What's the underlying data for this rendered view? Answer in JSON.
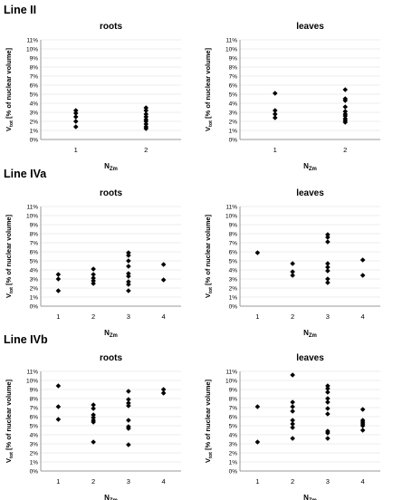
{
  "sections": [
    {
      "title": "Line II"
    },
    {
      "title": "Line IVa"
    },
    {
      "title": "Line IVb"
    }
  ],
  "ylabel_main": "V",
  "ylabel_sub": "tot",
  "ylabel_rest": " [% of nuclear volume]",
  "xlabel_main": "N",
  "xlabel_sub": "Zm",
  "chart_data": [
    {
      "type": "scatter",
      "section": "Line II",
      "title": "roots",
      "xlabel": "NZm",
      "ylabel": "Vtot [% of nuclear volume]",
      "ylim": [
        0,
        11
      ],
      "yticks": [
        "0%",
        "1%",
        "2%",
        "3%",
        "4%",
        "5%",
        "6%",
        "7%",
        "8%",
        "9%",
        "10%",
        "11%"
      ],
      "x_categories": [
        "1",
        "2"
      ],
      "points": [
        {
          "x": 1,
          "y": 3.2
        },
        {
          "x": 1,
          "y": 2.9
        },
        {
          "x": 1,
          "y": 2.5
        },
        {
          "x": 1,
          "y": 2.0
        },
        {
          "x": 1,
          "y": 1.4
        },
        {
          "x": 2,
          "y": 3.5
        },
        {
          "x": 2,
          "y": 3.2
        },
        {
          "x": 2,
          "y": 2.8
        },
        {
          "x": 2,
          "y": 2.5
        },
        {
          "x": 2,
          "y": 2.2
        },
        {
          "x": 2,
          "y": 2.0
        },
        {
          "x": 2,
          "y": 1.7
        },
        {
          "x": 2,
          "y": 1.4
        },
        {
          "x": 2,
          "y": 1.2
        }
      ]
    },
    {
      "type": "scatter",
      "section": "Line II",
      "title": "leaves",
      "xlabel": "NZm",
      "ylabel": "Vtot [% of nuclear volume]",
      "ylim": [
        0,
        11
      ],
      "yticks": [
        "0%",
        "1%",
        "2%",
        "3%",
        "4%",
        "5%",
        "6%",
        "7%",
        "8%",
        "9%",
        "10%",
        "11%"
      ],
      "x_categories": [
        "1",
        "2"
      ],
      "points": [
        {
          "x": 1,
          "y": 5.1
        },
        {
          "x": 1,
          "y": 3.2
        },
        {
          "x": 1,
          "y": 2.8
        },
        {
          "x": 1,
          "y": 2.4
        },
        {
          "x": 2,
          "y": 5.5
        },
        {
          "x": 2,
          "y": 4.5
        },
        {
          "x": 2,
          "y": 4.3
        },
        {
          "x": 2,
          "y": 3.6
        },
        {
          "x": 2,
          "y": 3.1
        },
        {
          "x": 2,
          "y": 2.8
        },
        {
          "x": 2,
          "y": 2.6
        },
        {
          "x": 2,
          "y": 2.3
        },
        {
          "x": 2,
          "y": 2.1
        },
        {
          "x": 2,
          "y": 1.9
        }
      ]
    },
    {
      "type": "scatter",
      "section": "Line IVa",
      "title": "roots",
      "xlabel": "NZm",
      "ylabel": "Vtot [% of nuclear volume]",
      "ylim": [
        0,
        11
      ],
      "yticks": [
        "0%",
        "1%",
        "2%",
        "3%",
        "4%",
        "5%",
        "6%",
        "7%",
        "8%",
        "9%",
        "10%",
        "11%"
      ],
      "x_categories": [
        "1",
        "2",
        "3",
        "4"
      ],
      "points": [
        {
          "x": 1,
          "y": 3.5
        },
        {
          "x": 1,
          "y": 3.0
        },
        {
          "x": 1,
          "y": 1.7
        },
        {
          "x": 2,
          "y": 4.1
        },
        {
          "x": 2,
          "y": 3.5
        },
        {
          "x": 2,
          "y": 3.1
        },
        {
          "x": 2,
          "y": 2.8
        },
        {
          "x": 2,
          "y": 2.5
        },
        {
          "x": 3,
          "y": 5.9
        },
        {
          "x": 3,
          "y": 5.6
        },
        {
          "x": 3,
          "y": 5.0
        },
        {
          "x": 3,
          "y": 4.4
        },
        {
          "x": 3,
          "y": 3.6
        },
        {
          "x": 3,
          "y": 3.3
        },
        {
          "x": 3,
          "y": 2.7
        },
        {
          "x": 3,
          "y": 2.4
        },
        {
          "x": 3,
          "y": 1.7
        },
        {
          "x": 4,
          "y": 4.6
        },
        {
          "x": 4,
          "y": 2.9
        }
      ]
    },
    {
      "type": "scatter",
      "section": "Line IVa",
      "title": "leaves",
      "xlabel": "NZm",
      "ylabel": "Vtot [% of nuclear volume]",
      "ylim": [
        0,
        11
      ],
      "yticks": [
        "0%",
        "1%",
        "2%",
        "3%",
        "4%",
        "5%",
        "6%",
        "7%",
        "8%",
        "9%",
        "10%",
        "11%"
      ],
      "x_categories": [
        "1",
        "2",
        "3",
        "4"
      ],
      "points": [
        {
          "x": 1,
          "y": 5.9
        },
        {
          "x": 2,
          "y": 4.7
        },
        {
          "x": 2,
          "y": 3.8
        },
        {
          "x": 2,
          "y": 3.4
        },
        {
          "x": 3,
          "y": 7.9
        },
        {
          "x": 3,
          "y": 7.6
        },
        {
          "x": 3,
          "y": 7.1
        },
        {
          "x": 3,
          "y": 4.7
        },
        {
          "x": 3,
          "y": 4.3
        },
        {
          "x": 3,
          "y": 3.9
        },
        {
          "x": 3,
          "y": 3.0
        },
        {
          "x": 3,
          "y": 2.6
        },
        {
          "x": 4,
          "y": 5.1
        },
        {
          "x": 4,
          "y": 3.4
        }
      ]
    },
    {
      "type": "scatter",
      "section": "Line IVb",
      "title": "roots",
      "xlabel": "NZm",
      "ylabel": "Vtot [% of nuclear volume]",
      "ylim": [
        0,
        11
      ],
      "yticks": [
        "0%",
        "1%",
        "2%",
        "3%",
        "4%",
        "5%",
        "6%",
        "7%",
        "8%",
        "9%",
        "10%",
        "11%"
      ],
      "x_categories": [
        "1",
        "2",
        "3",
        "4"
      ],
      "points": [
        {
          "x": 1,
          "y": 9.4
        },
        {
          "x": 1,
          "y": 7.1
        },
        {
          "x": 1,
          "y": 5.7
        },
        {
          "x": 2,
          "y": 7.3
        },
        {
          "x": 2,
          "y": 6.9
        },
        {
          "x": 2,
          "y": 6.2
        },
        {
          "x": 2,
          "y": 5.9
        },
        {
          "x": 2,
          "y": 5.6
        },
        {
          "x": 2,
          "y": 5.4
        },
        {
          "x": 2,
          "y": 3.2
        },
        {
          "x": 3,
          "y": 8.8
        },
        {
          "x": 3,
          "y": 7.9
        },
        {
          "x": 3,
          "y": 7.5
        },
        {
          "x": 3,
          "y": 7.2
        },
        {
          "x": 3,
          "y": 5.6
        },
        {
          "x": 3,
          "y": 4.9
        },
        {
          "x": 3,
          "y": 4.7
        },
        {
          "x": 3,
          "y": 2.9
        },
        {
          "x": 4,
          "y": 9.0
        },
        {
          "x": 4,
          "y": 8.6
        }
      ]
    },
    {
      "type": "scatter",
      "section": "Line IVb",
      "title": "leaves",
      "xlabel": "NZm",
      "ylabel": "Vtot [% of nuclear volume]",
      "ylim": [
        0,
        11
      ],
      "yticks": [
        "0%",
        "1%",
        "2%",
        "3%",
        "4%",
        "5%",
        "6%",
        "7%",
        "8%",
        "9%",
        "10%",
        "11%"
      ],
      "x_categories": [
        "1",
        "2",
        "3",
        "4"
      ],
      "points": [
        {
          "x": 1,
          "y": 7.1
        },
        {
          "x": 1,
          "y": 3.2
        },
        {
          "x": 2,
          "y": 10.6
        },
        {
          "x": 2,
          "y": 7.6
        },
        {
          "x": 2,
          "y": 7.1
        },
        {
          "x": 2,
          "y": 6.6
        },
        {
          "x": 2,
          "y": 5.6
        },
        {
          "x": 2,
          "y": 5.2
        },
        {
          "x": 2,
          "y": 4.8
        },
        {
          "x": 2,
          "y": 3.6
        },
        {
          "x": 3,
          "y": 9.4
        },
        {
          "x": 3,
          "y": 9.1
        },
        {
          "x": 3,
          "y": 8.7
        },
        {
          "x": 3,
          "y": 8.0
        },
        {
          "x": 3,
          "y": 7.6
        },
        {
          "x": 3,
          "y": 6.9
        },
        {
          "x": 3,
          "y": 6.3
        },
        {
          "x": 3,
          "y": 4.4
        },
        {
          "x": 3,
          "y": 4.2
        },
        {
          "x": 3,
          "y": 3.6
        },
        {
          "x": 4,
          "y": 6.8
        },
        {
          "x": 4,
          "y": 5.6
        },
        {
          "x": 4,
          "y": 5.4
        },
        {
          "x": 4,
          "y": 5.2
        },
        {
          "x": 4,
          "y": 5.0
        },
        {
          "x": 4,
          "y": 4.5
        }
      ]
    }
  ]
}
